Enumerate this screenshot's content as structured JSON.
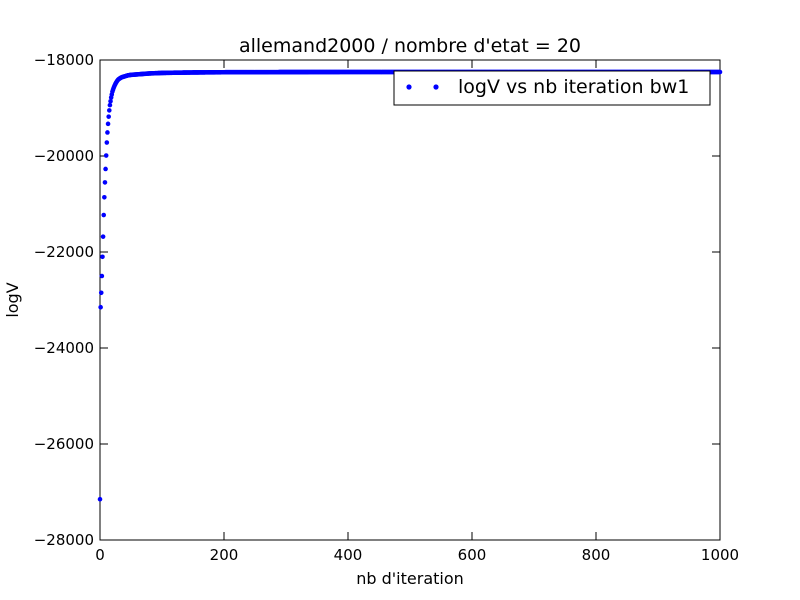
{
  "chart_data": {
    "type": "scatter",
    "title": "allemand2000 / nombre d'etat = 20",
    "xlabel": "nb d'iteration",
    "ylabel": "logV",
    "xlim": [
      0,
      1000
    ],
    "ylim": [
      -28000,
      -18000
    ],
    "xticks": [
      0,
      200,
      400,
      600,
      800,
      1000
    ],
    "yticks": [
      -28000,
      -26000,
      -24000,
      -22000,
      -20000,
      -18000
    ],
    "xtick_labels": [
      "0",
      "200",
      "400",
      "600",
      "800",
      "1000"
    ],
    "ytick_labels": [
      "−28000",
      "−26000",
      "−24000",
      "−22000",
      "−20000",
      "−18000"
    ],
    "grid": false,
    "legend_position": "top-right",
    "series": [
      {
        "name": "logV vs nb iteration bw1",
        "color": "#0000ff",
        "marker": "dot",
        "x": [
          0,
          1,
          2,
          3,
          4,
          5,
          6,
          7,
          8,
          9,
          10,
          11,
          12,
          13,
          14,
          15,
          16,
          17,
          18,
          19,
          20,
          22,
          24,
          26,
          28,
          30,
          35,
          40,
          45,
          50,
          60,
          70,
          80,
          90,
          100,
          120,
          150,
          200,
          300,
          400,
          500,
          600,
          700,
          800,
          900,
          1000
        ],
        "y": [
          -27150,
          -23150,
          -22850,
          -22500,
          -22100,
          -21680,
          -21230,
          -20860,
          -20550,
          -20270,
          -19990,
          -19720,
          -19510,
          -19330,
          -19180,
          -19050,
          -18940,
          -18860,
          -18780,
          -18720,
          -18660,
          -18580,
          -18520,
          -18470,
          -18430,
          -18400,
          -18360,
          -18340,
          -18320,
          -18310,
          -18300,
          -18290,
          -18280,
          -18275,
          -18270,
          -18265,
          -18260,
          -18255,
          -18252,
          -18250,
          -18250,
          -18250,
          -18250,
          -18250,
          -18250,
          -18250
        ]
      }
    ]
  }
}
